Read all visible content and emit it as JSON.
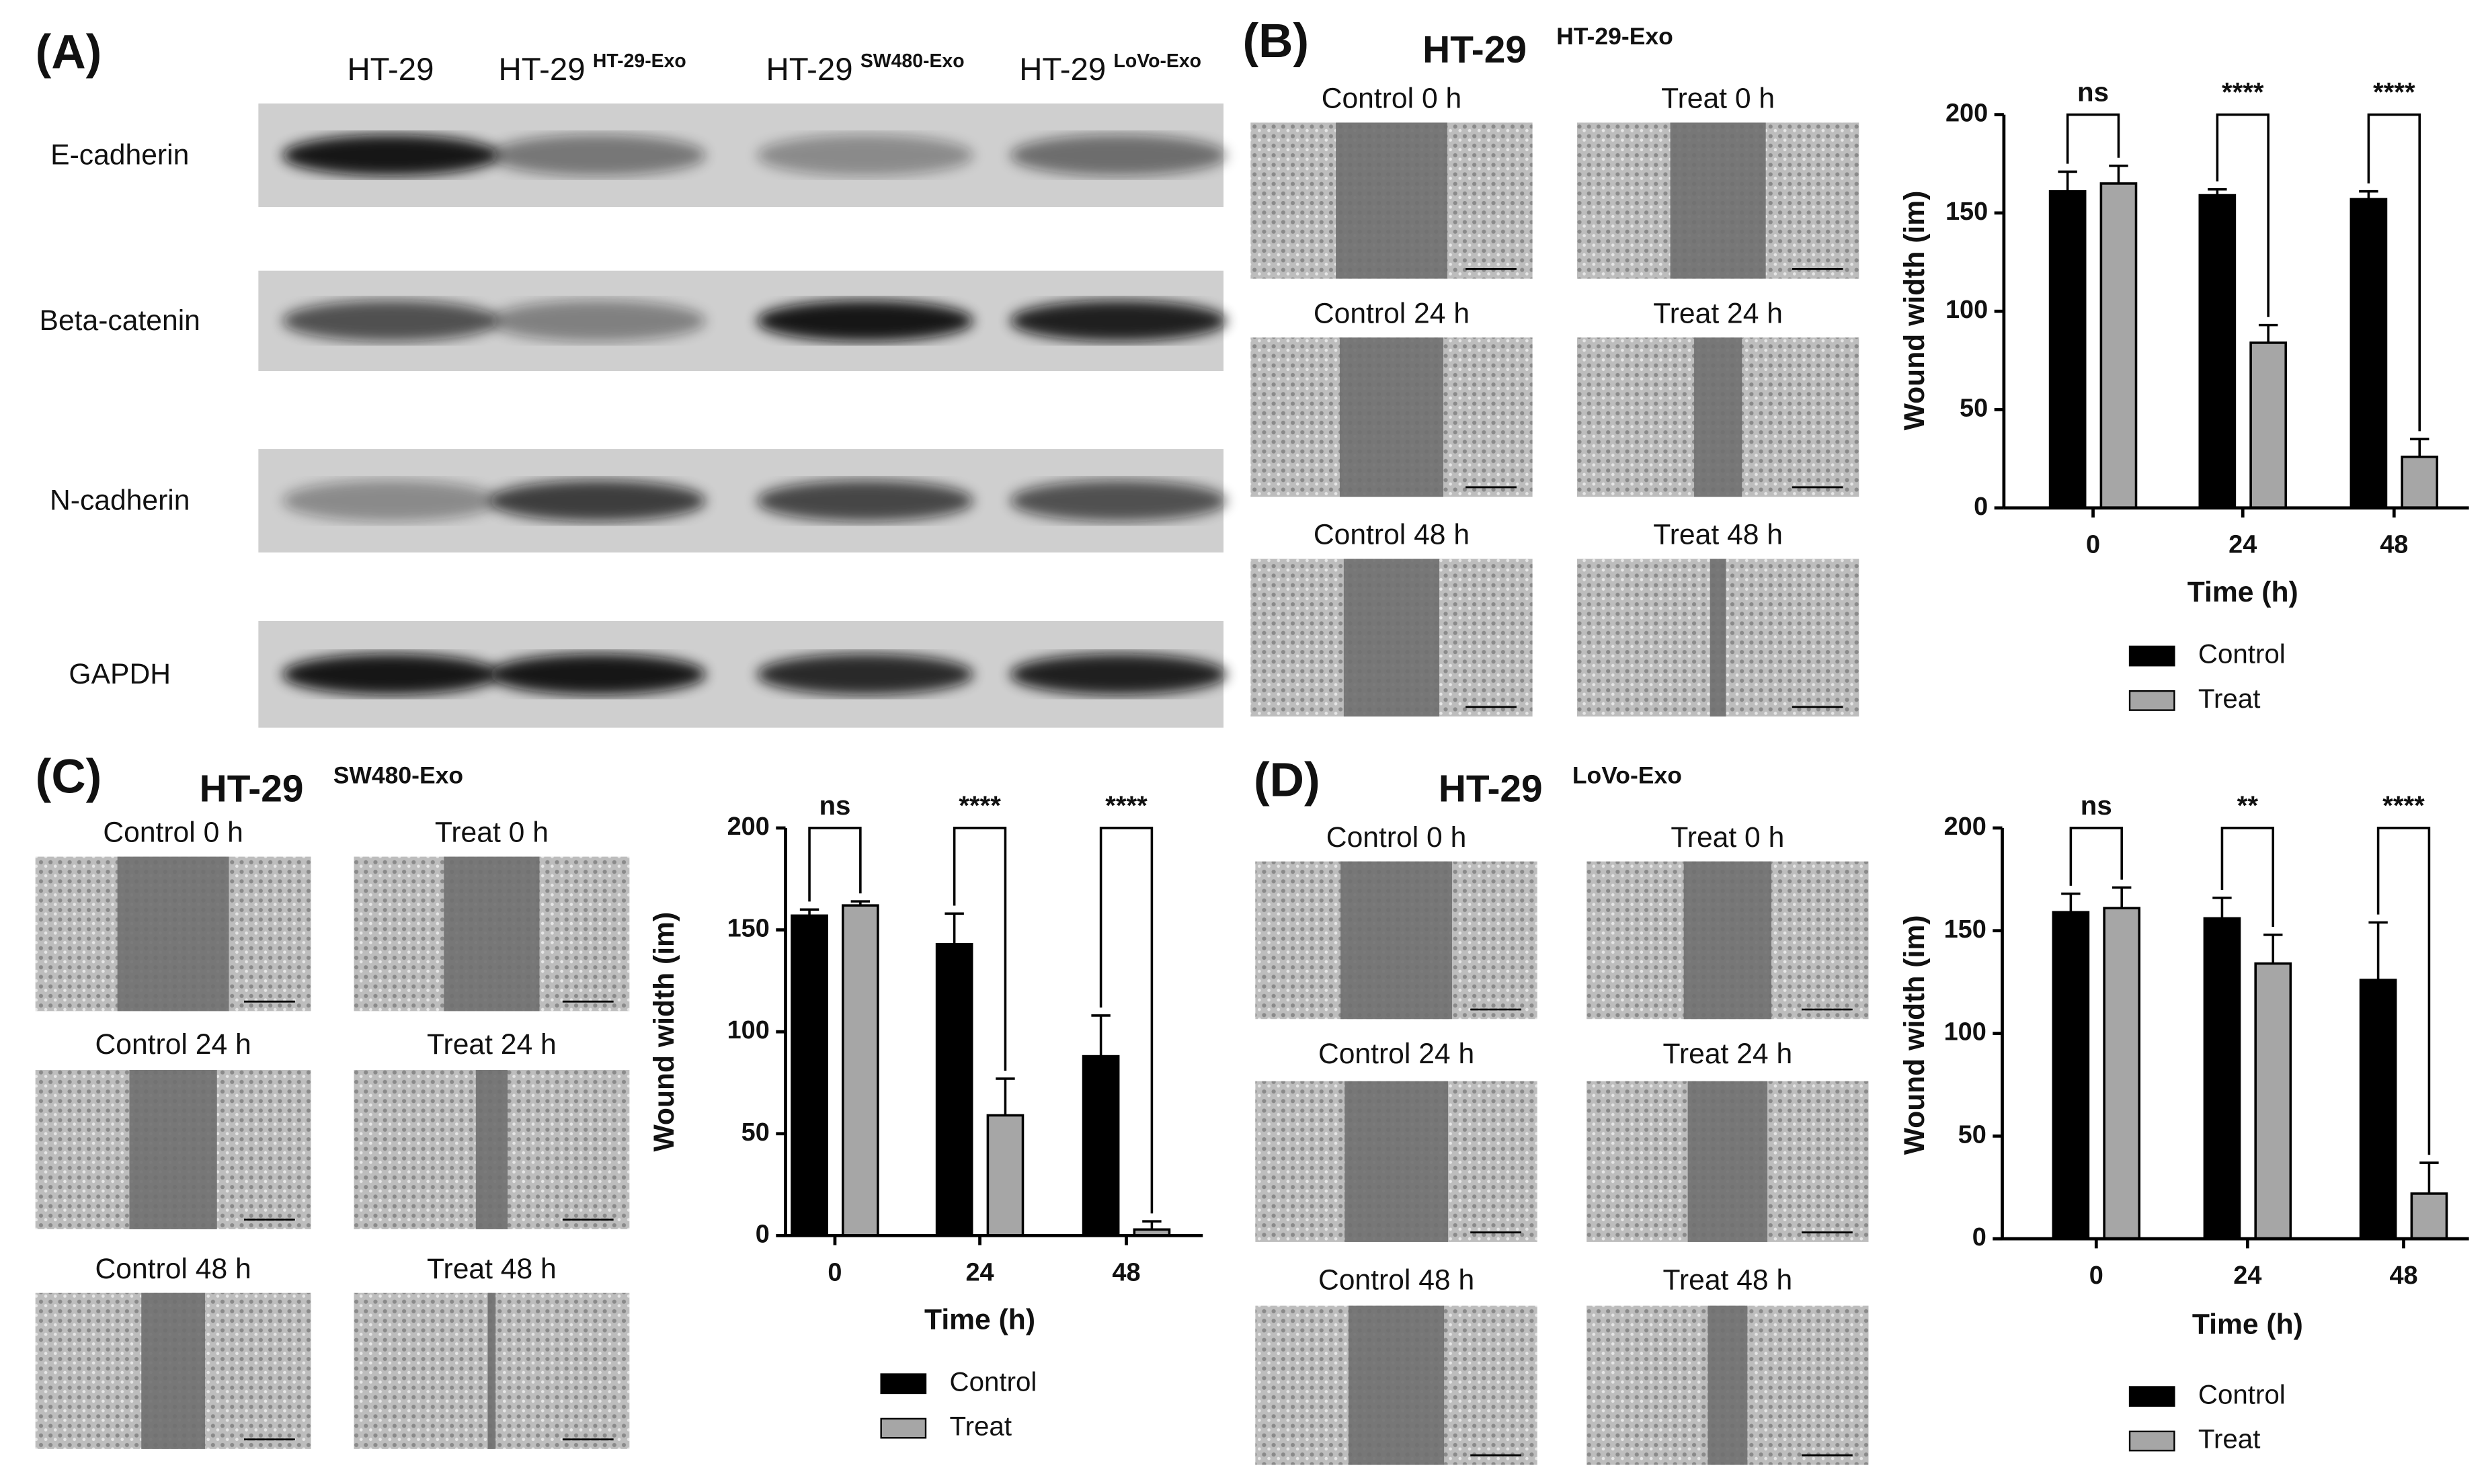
{
  "panel_labels": [
    "(A)",
    "(B)",
    "(C)",
    "(D)"
  ],
  "western_blot": {
    "lanes": [
      {
        "name": "HT-29"
      },
      {
        "name": "HT-29",
        "sup": "HT-29-Exo"
      },
      {
        "name": "HT-29",
        "sup": "SW480-Exo"
      },
      {
        "name": "HT-29",
        "sup": "LoVo-Exo"
      }
    ],
    "proteins": [
      "E-cadherin",
      "Beta-catenin",
      "N-cadherin",
      "GAPDH"
    ]
  },
  "wound_images": [
    [
      "Control 0 h",
      "Treat 0 h",
      "Control 24 h",
      "Treat 24 h",
      "Control 48 h",
      "Treat 48 h"
    ],
    [
      "Control 0 h",
      "Treat 0 h",
      "Control 24 h",
      "Treat 24 h",
      "Control 48 h",
      "Treat 48 h"
    ],
    [
      "Control 0 h",
      "Treat 0 h",
      "Control 24 h",
      "Treat 24 h",
      "Control 48 h",
      "Treat 48 h"
    ]
  ],
  "chart_data": [
    {
      "type": "bar",
      "title": "HT-29",
      "title_superscript": "HT-29-Exo",
      "categories": [
        "0",
        "24",
        "48"
      ],
      "series": [
        {
          "name": "Control",
          "color": "#000000",
          "values": [
            161,
            159,
            157
          ],
          "errors": [
            10,
            3,
            4
          ]
        },
        {
          "name": "Treat",
          "color": "#a6a6a6",
          "values": [
            165,
            84,
            26
          ],
          "errors": [
            9,
            9,
            9
          ]
        }
      ],
      "significance": [
        "ns",
        "****",
        "****"
      ],
      "xlabel": "Time (h)",
      "ylabel": "Wound width (im)",
      "ylim": [
        0,
        200
      ],
      "yticks": [
        0,
        50,
        100,
        150,
        200
      ]
    },
    {
      "type": "bar",
      "title": "HT-29",
      "title_superscript": "SW480-Exo",
      "categories": [
        "0",
        "24",
        "48"
      ],
      "series": [
        {
          "name": "Control",
          "color": "#000000",
          "values": [
            157,
            143,
            88
          ],
          "errors": [
            3,
            15,
            20
          ]
        },
        {
          "name": "Treat",
          "color": "#a6a6a6",
          "values": [
            162,
            59,
            3
          ],
          "errors": [
            2,
            18,
            4
          ]
        }
      ],
      "significance": [
        "ns",
        "****",
        "****"
      ],
      "xlabel": "Time (h)",
      "ylabel": "Wound width (im)",
      "ylim": [
        0,
        200
      ],
      "yticks": [
        0,
        50,
        100,
        150,
        200
      ]
    },
    {
      "type": "bar",
      "title": "HT-29",
      "title_superscript": "LoVo-Exo",
      "categories": [
        "0",
        "24",
        "48"
      ],
      "series": [
        {
          "name": "Control",
          "color": "#000000",
          "values": [
            159,
            156,
            126
          ],
          "errors": [
            9,
            10,
            28
          ]
        },
        {
          "name": "Treat",
          "color": "#a6a6a6",
          "values": [
            161,
            134,
            22
          ],
          "errors": [
            10,
            14,
            15
          ]
        }
      ],
      "significance": [
        "ns",
        "**",
        "****"
      ],
      "xlabel": "Time (h)",
      "ylabel": "Wound width (im)",
      "ylim": [
        0,
        200
      ],
      "yticks": [
        0,
        50,
        100,
        150,
        200
      ]
    }
  ]
}
